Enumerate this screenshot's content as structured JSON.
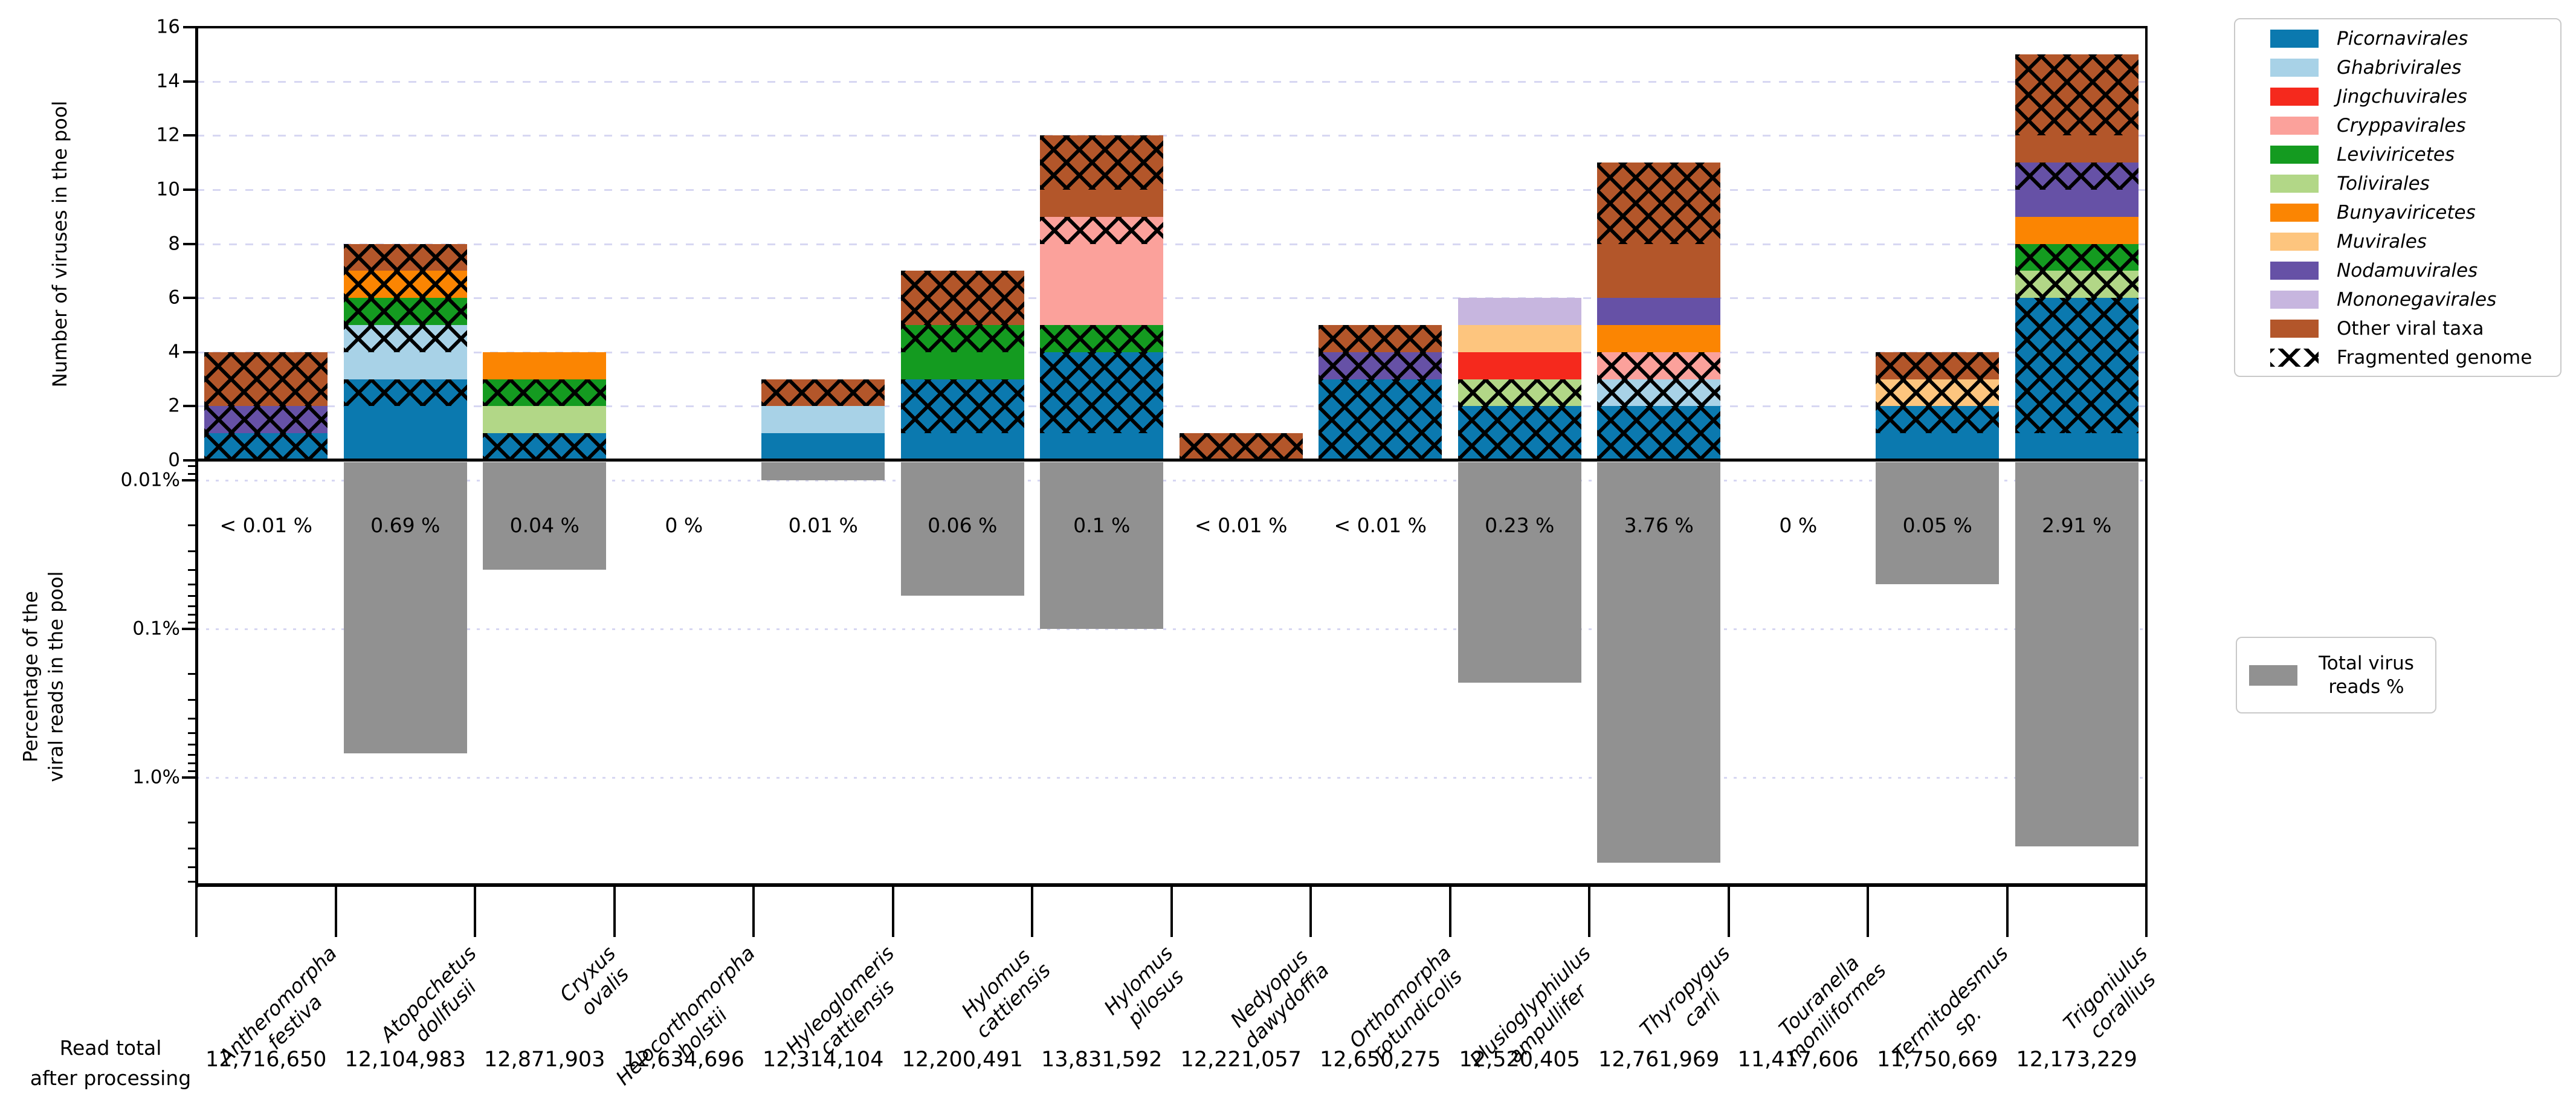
{
  "chart_data": {
    "type": "bar",
    "subtype": "dual_panel_stacked_bar_with_log_percentage_panel",
    "top_panel": {
      "ylabel": "Number of viruses in the pool",
      "ylim": [
        0,
        16
      ],
      "yticks": [
        0,
        2,
        4,
        6,
        8,
        10,
        12,
        14,
        16
      ],
      "gridlines": "dashed, light lavender, at 2..14",
      "unit_meaning": "each 1-unit block = one virus; crosshatched blocks = fragmented genome"
    },
    "bottom_panel": {
      "ylabel": "Percentage of the\nviral reads in the pool",
      "scale": "log, increasing downward",
      "yticks": [
        "0.01%",
        "0.1%",
        "1.0%"
      ],
      "gridlines": "dotted, light lavender, at 0.01%, 0.1%, 1.0%",
      "bar_color_key": "total_virus_reads_gray"
    },
    "x_axis_note": "species pools; boundary ticks between categories",
    "read_total_caption": "Read total\nafter processing",
    "legend": {
      "items": [
        {
          "key": "picorna",
          "label": "Picornavirales",
          "color": "#0b79af",
          "italic": true,
          "hatch": false
        },
        {
          "key": "ghabri",
          "label": "Ghabrivirales",
          "color": "#a8d2e7",
          "italic": true,
          "hatch": false
        },
        {
          "key": "jingchu",
          "label": "Jingchuvirales",
          "color": "#f5291d",
          "italic": true,
          "hatch": false
        },
        {
          "key": "cryppa",
          "label": "Cryppavirales",
          "color": "#fba19b",
          "italic": true,
          "hatch": false
        },
        {
          "key": "levivi",
          "label": "Leviviricetes",
          "color": "#149b20",
          "italic": true,
          "hatch": false
        },
        {
          "key": "toli",
          "label": "Tolivirales",
          "color": "#b2d787",
          "italic": true,
          "hatch": false
        },
        {
          "key": "bunya",
          "label": "Bunyaviricetes",
          "color": "#fb8502",
          "italic": true,
          "hatch": false
        },
        {
          "key": "muvi",
          "label": "Muvirales",
          "color": "#fdc57e",
          "italic": true,
          "hatch": false
        },
        {
          "key": "nodamu",
          "label": "Nodamuvirales",
          "color": "#6651a6",
          "italic": true,
          "hatch": false
        },
        {
          "key": "mononega",
          "label": "Mononegavirales",
          "color": "#c7b6df",
          "italic": true,
          "hatch": false
        },
        {
          "key": "other",
          "label": "Other viral taxa",
          "color": "#b3562a",
          "italic": false,
          "hatch": false
        },
        {
          "key": "frag",
          "label": "Fragmented genome",
          "color": "#ffffff",
          "italic": false,
          "hatch": true
        }
      ]
    },
    "legend2": {
      "line1": "Total virus",
      "line2": "reads %",
      "color": "#919191"
    },
    "palette": {
      "picorna": "#0b79af",
      "ghabri": "#a8d2e7",
      "jingchu": "#f5291d",
      "cryppa": "#fba19b",
      "levivi": "#149b20",
      "toli": "#b2d787",
      "bunya": "#fb8502",
      "muvi": "#fdc57e",
      "nodamu": "#6651a6",
      "mononega": "#c7b6df",
      "other": "#b3562a",
      "gray": "#919191",
      "grid": "#d7d7f2"
    },
    "species": [
      {
        "name": "Antheromorpha\nfestiva",
        "read_total": "12,716,650",
        "percent_label": "< 0.01 %",
        "percent_value": null,
        "segments": [
          {
            "taxon": "picorna",
            "units": 1,
            "hatched": true
          },
          {
            "taxon": "nodamu",
            "units": 1,
            "hatched": true
          },
          {
            "taxon": "other",
            "units": 2,
            "hatched": true
          }
        ]
      },
      {
        "name": "Atopochetus\ndollfusii",
        "read_total": "12,104,983",
        "percent_label": "0.69 %",
        "percent_value": 0.69,
        "segments": [
          {
            "taxon": "picorna",
            "units": 2,
            "hatched": false
          },
          {
            "taxon": "picorna",
            "units": 1,
            "hatched": true
          },
          {
            "taxon": "ghabri",
            "units": 1,
            "hatched": false
          },
          {
            "taxon": "ghabri",
            "units": 1,
            "hatched": true
          },
          {
            "taxon": "levivi",
            "units": 1,
            "hatched": true
          },
          {
            "taxon": "bunya",
            "units": 1,
            "hatched": true
          },
          {
            "taxon": "other",
            "units": 1,
            "hatched": true
          }
        ]
      },
      {
        "name": "Cryxus\novalis",
        "read_total": "12,871,903",
        "percent_label": "0.04 %",
        "percent_value": 0.04,
        "segments": [
          {
            "taxon": "picorna",
            "units": 1,
            "hatched": true
          },
          {
            "taxon": "toli",
            "units": 1,
            "hatched": false
          },
          {
            "taxon": "levivi",
            "units": 1,
            "hatched": true
          },
          {
            "taxon": "bunya",
            "units": 1,
            "hatched": false
          }
        ]
      },
      {
        "name": "Helocorthomorpha\nholstii",
        "read_total": "12,634,696",
        "percent_label": "0 %",
        "percent_value": null,
        "segments": []
      },
      {
        "name": "Hyleoglomeris\ncattiensis",
        "read_total": "12,314,104",
        "percent_label": "0.01 %",
        "percent_value": 0.01,
        "segments": [
          {
            "taxon": "picorna",
            "units": 1,
            "hatched": false
          },
          {
            "taxon": "ghabri",
            "units": 1,
            "hatched": false
          },
          {
            "taxon": "other",
            "units": 1,
            "hatched": true
          }
        ]
      },
      {
        "name": "Hylomus\ncattiensis",
        "read_total": "12,200,491",
        "percent_label": "0.06 %",
        "percent_value": 0.06,
        "segments": [
          {
            "taxon": "picorna",
            "units": 1,
            "hatched": false
          },
          {
            "taxon": "picorna",
            "units": 2,
            "hatched": true
          },
          {
            "taxon": "levivi",
            "units": 1,
            "hatched": false
          },
          {
            "taxon": "levivi",
            "units": 1,
            "hatched": true
          },
          {
            "taxon": "other",
            "units": 2,
            "hatched": true
          }
        ]
      },
      {
        "name": "Hylomus\npilosus",
        "read_total": "13,831,592",
        "percent_label": "0.1 %",
        "percent_value": 0.1,
        "segments": [
          {
            "taxon": "picorna",
            "units": 1,
            "hatched": false
          },
          {
            "taxon": "picorna",
            "units": 3,
            "hatched": true
          },
          {
            "taxon": "levivi",
            "units": 1,
            "hatched": true
          },
          {
            "taxon": "cryppa",
            "units": 3,
            "hatched": false
          },
          {
            "taxon": "cryppa",
            "units": 1,
            "hatched": true
          },
          {
            "taxon": "other",
            "units": 1,
            "hatched": false
          },
          {
            "taxon": "other",
            "units": 2,
            "hatched": true
          }
        ]
      },
      {
        "name": "Nedyopus\ndawydoffia",
        "read_total": "12,221,057",
        "percent_label": "< 0.01 %",
        "percent_value": null,
        "segments": [
          {
            "taxon": "other",
            "units": 1,
            "hatched": true
          }
        ]
      },
      {
        "name": "Orthomorpha\nrotundicolis",
        "read_total": "12,650,275",
        "percent_label": "< 0.01 %",
        "percent_value": null,
        "segments": [
          {
            "taxon": "picorna",
            "units": 3,
            "hatched": true
          },
          {
            "taxon": "nodamu",
            "units": 1,
            "hatched": true
          },
          {
            "taxon": "other",
            "units": 1,
            "hatched": true
          }
        ]
      },
      {
        "name": "Plusioglyphiulus\nampullifer",
        "read_total": "12,520,405",
        "percent_label": "0.23 %",
        "percent_value": 0.23,
        "segments": [
          {
            "taxon": "picorna",
            "units": 2,
            "hatched": true
          },
          {
            "taxon": "toli",
            "units": 1,
            "hatched": true
          },
          {
            "taxon": "jingchu",
            "units": 1,
            "hatched": false
          },
          {
            "taxon": "muvi",
            "units": 1,
            "hatched": false
          },
          {
            "taxon": "mononega",
            "units": 1,
            "hatched": false
          }
        ]
      },
      {
        "name": "Thyropygus\ncarli",
        "read_total": "12,761,969",
        "percent_label": "3.76 %",
        "percent_value": 3.76,
        "segments": [
          {
            "taxon": "picorna",
            "units": 2,
            "hatched": true
          },
          {
            "taxon": "ghabri",
            "units": 1,
            "hatched": true
          },
          {
            "taxon": "cryppa",
            "units": 1,
            "hatched": true
          },
          {
            "taxon": "bunya",
            "units": 1,
            "hatched": false
          },
          {
            "taxon": "nodamu",
            "units": 1,
            "hatched": false
          },
          {
            "taxon": "other",
            "units": 2,
            "hatched": false
          },
          {
            "taxon": "other",
            "units": 3,
            "hatched": true
          }
        ]
      },
      {
        "name": "Touranella\nmoniliformes",
        "read_total": "11,417,606",
        "percent_label": "0 %",
        "percent_value": null,
        "segments": []
      },
      {
        "name": "Termitodesmus\nsp.",
        "read_total": "11,750,669",
        "percent_label": "0.05 %",
        "percent_value": 0.05,
        "segments": [
          {
            "taxon": "picorna",
            "units": 1,
            "hatched": false
          },
          {
            "taxon": "picorna",
            "units": 1,
            "hatched": true
          },
          {
            "taxon": "muvi",
            "units": 1,
            "hatched": true
          },
          {
            "taxon": "other",
            "units": 1,
            "hatched": true
          }
        ]
      },
      {
        "name": "Trigoniulus\ncorallius",
        "read_total": "12,173,229",
        "percent_label": "2.91 %",
        "percent_value": 2.91,
        "segments": [
          {
            "taxon": "picorna",
            "units": 1,
            "hatched": false
          },
          {
            "taxon": "picorna",
            "units": 5,
            "hatched": true
          },
          {
            "taxon": "toli",
            "units": 1,
            "hatched": true
          },
          {
            "taxon": "levivi",
            "units": 1,
            "hatched": true
          },
          {
            "taxon": "bunya",
            "units": 1,
            "hatched": false
          },
          {
            "taxon": "nodamu",
            "units": 1,
            "hatched": false
          },
          {
            "taxon": "nodamu",
            "units": 1,
            "hatched": true
          },
          {
            "taxon": "other",
            "units": 1,
            "hatched": false
          },
          {
            "taxon": "other",
            "units": 3,
            "hatched": true
          }
        ]
      }
    ]
  }
}
